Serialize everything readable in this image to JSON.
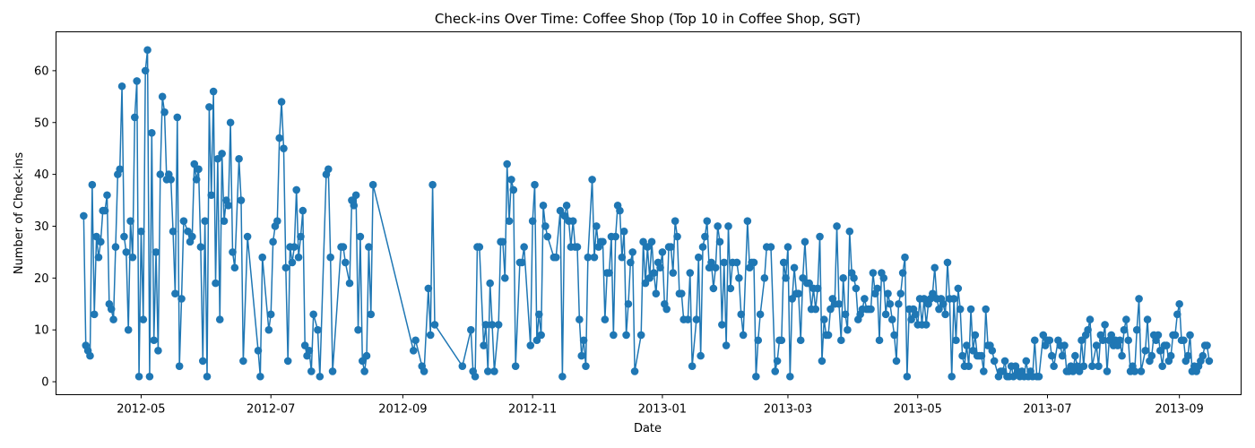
{
  "chart_data": {
    "type": "line",
    "title": "Check-ins Over Time: Coffee Shop (Top 10 in Coffee Shop, SGT)",
    "xlabel": "Date",
    "ylabel": "Number of Check-ins",
    "xlim": [
      "2012-03-22",
      "2013-09-30"
    ],
    "ylim": [
      -2.5,
      67.5
    ],
    "x_ticks": [
      "2012-05-01",
      "2012-07-01",
      "2012-09-01",
      "2012-11-01",
      "2013-01-01",
      "2013-03-01",
      "2013-05-01",
      "2013-07-01",
      "2013-09-01"
    ],
    "x_tick_labels": [
      "2012-05",
      "2012-07",
      "2012-09",
      "2012-11",
      "2013-01",
      "2013-03",
      "2013-05",
      "2013-07",
      "2013-09"
    ],
    "y_ticks": [
      0,
      10,
      20,
      30,
      40,
      50,
      60
    ],
    "grid": false,
    "legend": "none",
    "marker": "circle",
    "series": [
      {
        "color": "#1f77b4",
        "start_date": "2012-04-04",
        "daily_values": [
          32,
          7,
          6,
          5,
          38,
          13,
          28,
          24,
          27,
          33,
          33,
          36,
          15,
          14,
          12,
          26,
          40,
          41,
          57,
          28,
          25,
          10,
          31,
          24,
          51,
          58,
          1,
          29,
          12,
          60,
          64,
          1,
          48,
          8,
          25,
          6,
          40,
          55,
          52,
          39,
          40,
          39,
          29,
          17,
          51,
          3,
          16,
          31,
          null,
          29,
          27,
          28,
          42,
          39,
          41,
          26,
          4,
          31,
          1,
          53,
          36,
          56,
          19,
          43,
          12,
          44,
          31,
          35,
          34,
          50,
          25,
          22,
          null,
          43,
          35,
          4,
          null,
          28,
          null,
          null,
          null,
          null,
          6,
          1,
          24,
          null,
          null,
          10,
          13,
          27,
          30,
          31,
          47,
          54,
          45,
          22,
          4,
          26,
          23,
          26,
          37,
          24,
          28,
          33,
          7,
          5,
          6,
          2,
          13,
          null,
          10,
          1,
          null,
          null,
          40,
          41,
          24,
          2,
          null,
          null,
          null,
          26,
          26,
          23,
          null,
          19,
          35,
          34,
          36,
          10,
          28,
          4,
          2,
          5,
          26,
          13,
          38,
          null,
          null,
          null,
          null,
          null,
          null,
          null,
          null,
          null,
          null,
          null,
          null,
          null,
          null,
          null,
          null,
          null,
          null,
          6,
          8,
          null,
          null,
          3,
          2,
          null,
          18,
          9,
          38,
          11,
          null,
          null,
          null,
          null,
          null,
          null,
          null,
          null,
          null,
          null,
          null,
          null,
          3,
          null,
          null,
          null,
          10,
          2,
          1,
          26,
          26,
          null,
          7,
          11,
          2,
          19,
          11,
          2,
          null,
          11,
          27,
          27,
          20,
          42,
          31,
          39,
          37,
          3,
          null,
          23,
          23,
          26,
          null,
          null,
          7,
          31,
          38,
          8,
          13,
          9,
          34,
          30,
          28,
          null,
          null,
          24,
          24,
          null,
          33,
          1,
          32,
          34,
          31,
          26,
          31,
          26,
          26,
          12,
          5,
          8,
          3,
          24,
          null,
          39,
          24,
          30,
          26,
          27,
          27,
          12,
          21,
          21,
          28,
          9,
          28,
          34,
          33,
          24,
          29,
          9,
          15,
          23,
          25,
          2,
          null,
          null,
          9,
          27,
          19,
          26,
          20,
          27,
          21,
          17,
          23,
          22,
          25,
          15,
          14,
          26,
          26,
          21,
          31,
          28,
          17,
          17,
          12,
          null,
          12,
          21,
          3,
          null,
          12,
          24,
          5,
          26,
          28,
          31,
          22,
          23,
          18,
          22,
          30,
          27,
          11,
          23,
          7,
          30,
          18,
          23,
          null,
          23,
          20,
          13,
          9,
          null,
          31,
          22,
          23,
          23,
          1,
          8,
          13,
          null,
          20,
          26,
          null,
          26,
          null,
          2,
          4,
          8,
          8,
          23,
          20,
          26,
          1,
          16,
          22,
          17,
          17,
          8,
          20,
          27,
          19,
          19,
          14,
          18,
          14,
          18,
          28,
          4,
          12,
          9,
          9,
          14,
          16,
          15,
          30,
          15,
          8,
          20,
          13,
          10,
          29,
          21,
          20,
          18,
          12,
          13,
          14,
          16,
          14,
          14,
          14,
          21,
          17,
          18,
          8,
          21,
          20,
          13,
          17,
          15,
          12,
          9,
          4,
          15,
          17,
          21,
          24,
          1,
          14,
          12,
          14,
          13,
          11,
          16,
          11,
          16,
          11,
          15,
          16,
          17,
          22,
          16,
          14,
          16,
          15,
          13,
          23,
          16,
          1,
          16,
          8,
          18,
          14,
          5,
          3,
          7,
          3,
          14,
          6,
          9,
          5,
          5,
          5,
          2,
          14,
          7,
          7,
          6,
          4,
          null,
          1,
          2,
          2,
          4,
          1,
          1,
          3,
          1,
          3,
          2,
          1,
          2,
          1,
          4,
          1,
          2,
          1,
          8,
          1,
          1,
          null,
          9,
          7,
          8,
          8,
          5,
          3,
          null,
          8,
          7,
          5,
          7,
          2,
          2,
          3,
          2,
          5,
          3,
          2,
          8,
          3,
          9,
          10,
          12,
          3,
          null,
          7,
          3,
          9,
          8,
          11,
          2,
          8,
          9,
          7,
          8,
          7,
          8,
          5,
          10,
          12,
          8,
          2,
          3,
          2,
          10,
          16,
          2,
          null,
          6,
          12,
          4,
          5,
          9,
          8,
          9,
          6,
          3,
          7,
          7,
          4,
          5,
          9,
          9,
          13,
          15,
          8,
          8,
          4,
          5,
          9,
          2,
          3,
          2,
          3,
          4,
          5,
          7,
          7,
          4
        ]
      }
    ]
  }
}
